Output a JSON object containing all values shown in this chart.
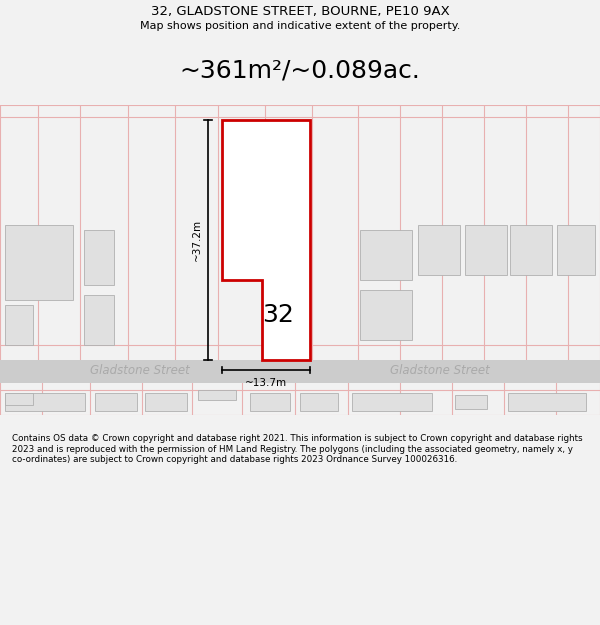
{
  "title_line1": "32, GLADSTONE STREET, BOURNE, PE10 9AX",
  "title_line2": "Map shows position and indicative extent of the property.",
  "area_text": "~361m²/~0.089ac.",
  "property_number": "32",
  "dim_height": "~37.2m",
  "dim_width": "~13.7m",
  "street_name_left": "Gladstone Street",
  "street_name_right": "Gladstone Street",
  "footer_text": "Contains OS data © Crown copyright and database right 2021. This information is subject to Crown copyright and database rights 2023 and is reproduced with the permission of HM Land Registry. The polygons (including the associated geometry, namely x, y co-ordinates) are subject to Crown copyright and database rights 2023 Ordnance Survey 100026316.",
  "bg_color": "#f2f2f2",
  "map_bg": "#ffffff",
  "property_fill": "#ffffff",
  "property_edge": "#cc0000",
  "road_color": "#cccccc",
  "building_fill": "#e0e0e0",
  "building_edge": "#b0b0b0",
  "plot_line_color": "#e8b0b0",
  "dim_line_color": "#000000",
  "street_text_color": "#aaaaaa"
}
